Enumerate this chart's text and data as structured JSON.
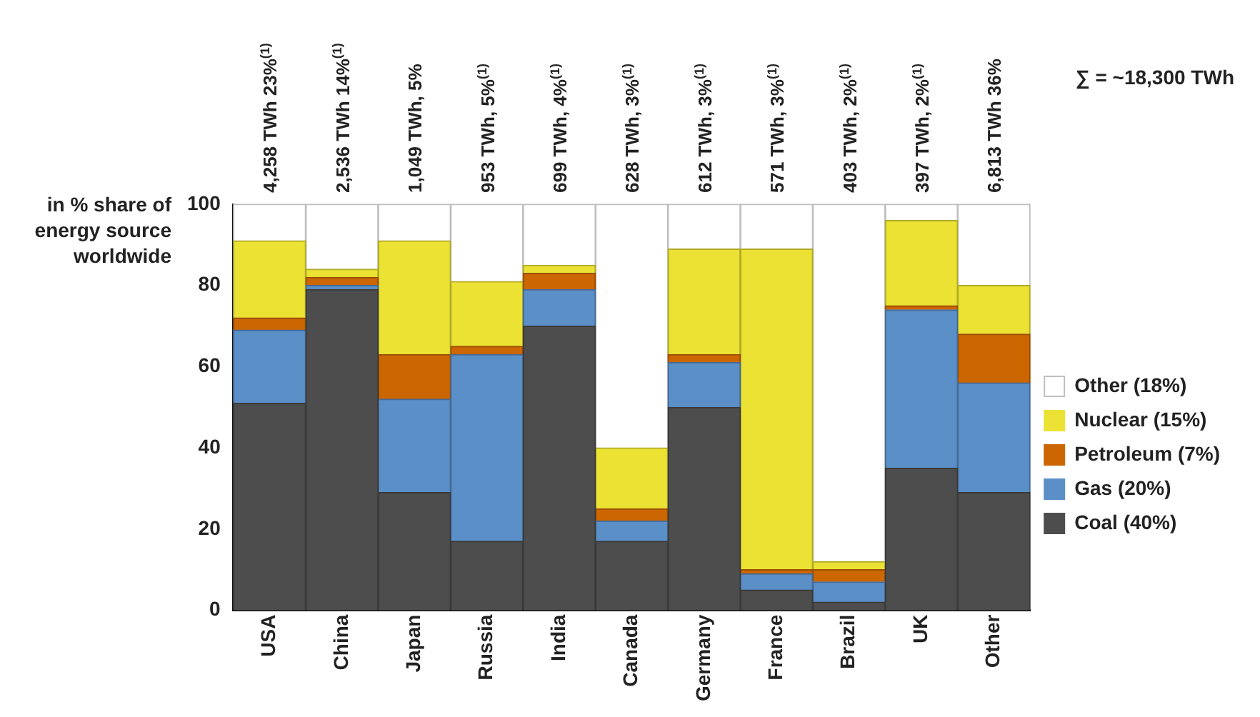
{
  "chart_data": {
    "type": "bar",
    "stacked": true,
    "ylabel": "in % share of energy source worldwide",
    "categories": [
      "USA",
      "China",
      "Japan",
      "Russia",
      "India",
      "Canada",
      "Germany",
      "France",
      "Brazil",
      "UK",
      "Other"
    ],
    "series": [
      {
        "name": "Coal (40%)",
        "color": "#4d4d4d",
        "values": [
          51,
          79,
          29,
          17,
          70,
          17,
          50,
          5,
          2,
          35,
          29
        ]
      },
      {
        "name": "Gas (20%)",
        "color": "#5b8fc8",
        "values": [
          18,
          1,
          23,
          46,
          9,
          5,
          11,
          4,
          5,
          39,
          27
        ]
      },
      {
        "name": "Petroleum (7%)",
        "color": "#cc6600",
        "values": [
          3,
          2,
          11,
          2,
          4,
          3,
          2,
          1,
          3,
          1,
          12
        ]
      },
      {
        "name": "Nuclear (15%)",
        "color": "#ebe233",
        "values": [
          19,
          2,
          28,
          16,
          2,
          15,
          26,
          79,
          2,
          21,
          12
        ]
      },
      {
        "name": "Other (18%)",
        "color": "#ffffff",
        "values": [
          9,
          16,
          9,
          19,
          15,
          60,
          11,
          11,
          88,
          4,
          20
        ]
      }
    ],
    "totals": [
      "4,258 TWh 23%$^{(1)}$",
      "2,536 TWh 14%$^{(1)}$",
      "1,049 TWh, 5%",
      "953 TWh, 5%$^{(1)}$",
      "699 TWh, 4%$^{(1)}$",
      "628 TWh, 3%$^{(1)}$",
      "612 TWh, 3%$^{(1)}$",
      "571 TWh, 3%$^{(1)}$",
      "403 TWh, 2%$^{(1)}$",
      "397 TWh, 2%$^{(1)}$",
      "6,813 TWh 36%"
    ],
    "annotations": [
      "∑ = ~18,300 TWh"
    ],
    "ylim": [
      0,
      100
    ],
    "yticks": [
      0,
      20,
      40,
      60,
      80,
      100
    ],
    "grid": false,
    "legend": "right"
  }
}
